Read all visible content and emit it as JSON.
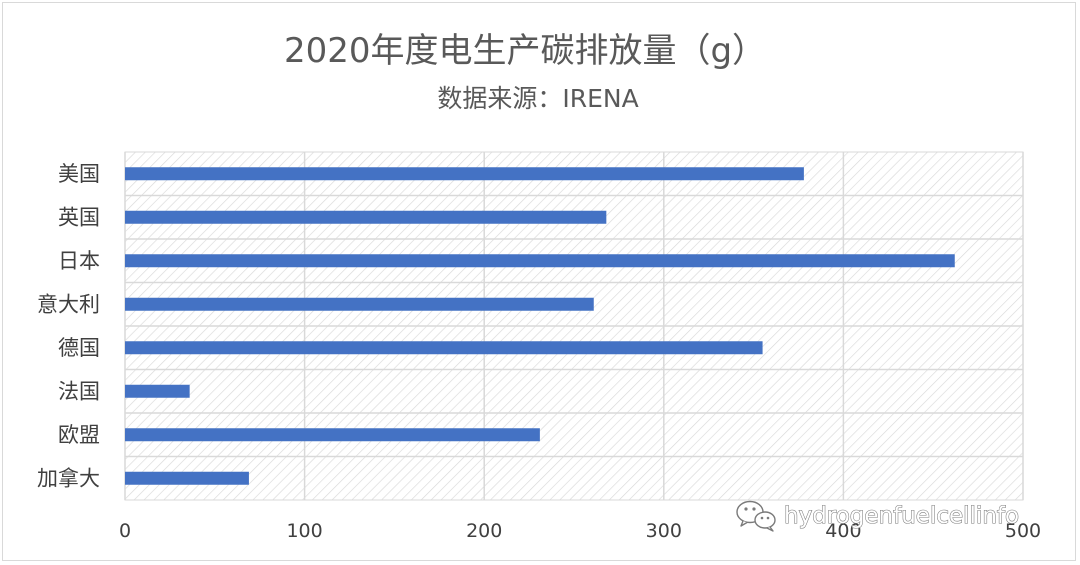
{
  "chart_data": {
    "type": "bar",
    "orientation": "horizontal",
    "title": "2020年度电生产碳排放量（g）",
    "subtitle": "数据来源：IRENA",
    "categories": [
      "美国",
      "英国",
      "日本",
      "意大利",
      "德国",
      "法国",
      "欧盟",
      "加拿大"
    ],
    "series": [
      {
        "values": [
          378,
          268,
          462,
          261,
          355,
          36,
          231,
          69
        ]
      }
    ],
    "xlim": [
      0,
      500
    ],
    "xticks": [
      "0",
      "100",
      "200",
      "300",
      "400",
      "500"
    ],
    "grid": true,
    "legend": "none",
    "colors": {
      "bar": "#4472c4",
      "grid": "#d9d9d9",
      "hatch": "#d9d9d9",
      "text": "#595959"
    }
  },
  "watermark": {
    "text": "hydrogenfuelcellinfo",
    "icon": "wechat-icon"
  }
}
